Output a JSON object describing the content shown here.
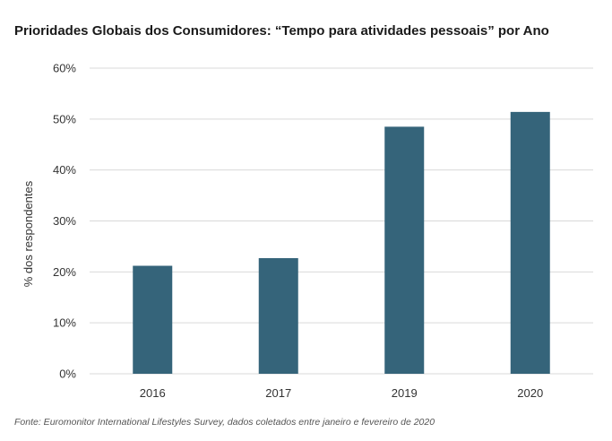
{
  "chart_data": {
    "type": "bar",
    "title": "Prioridades Globais dos Consumidores: “Tempo para atividades pessoais” por Ano",
    "ylabel": "% dos respondentes",
    "xlabel": "",
    "categories": [
      "2016",
      "2017",
      "2019",
      "2020"
    ],
    "values": [
      21.2,
      22.7,
      48.5,
      51.4
    ],
    "ylim": [
      0,
      60
    ],
    "yticks": [
      0,
      10,
      20,
      30,
      40,
      50,
      60
    ],
    "ytick_labels": [
      "0%",
      "10%",
      "20%",
      "30%",
      "40%",
      "50%",
      "60%"
    ],
    "grid": true,
    "bar_color": "#35647a",
    "grid_color": "#d9d9d9",
    "source": "Fonte: Euromonitor International Lifestyles Survey, dados coletados entre janeiro e fevereiro de 2020"
  }
}
